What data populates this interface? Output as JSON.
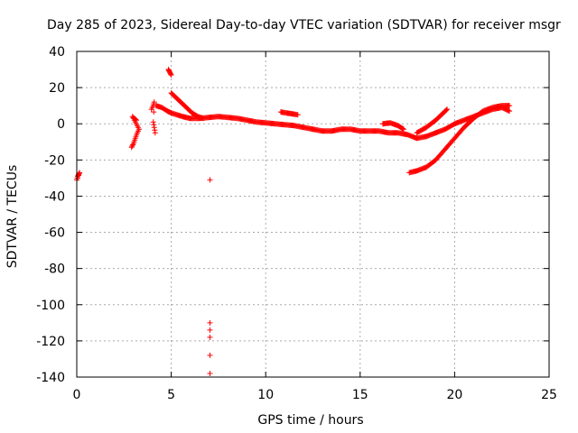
{
  "chart_data": {
    "type": "scatter",
    "title": "Day 285 of 2023, Sidereal Day-to-day VTEC variation (SDTVAR) for receiver msgr",
    "xlabel": "GPS time / hours",
    "ylabel": "SDTVAR / TECUs",
    "xlim": [
      0,
      25
    ],
    "ylim": [
      -140,
      40
    ],
    "xticks": [
      0,
      5,
      10,
      15,
      20,
      25
    ],
    "xtick_labels": [
      "0",
      "5",
      "10",
      "15",
      "20",
      "25"
    ],
    "yticks": [
      40,
      20,
      0,
      -20,
      -40,
      -60,
      -80,
      -100,
      -120,
      -140
    ],
    "ytick_labels": [
      "40",
      "20",
      "0",
      "-20",
      "-40",
      "-60",
      "-80",
      "-100",
      "-120",
      "-140"
    ],
    "grid": true,
    "marker": "+",
    "color": "#ff0000",
    "series": [
      {
        "name": "SDTVAR",
        "segments": [
          [
            [
              0.0,
              -31
            ],
            [
              0.05,
              -29
            ],
            [
              0.1,
              -28
            ],
            [
              0.15,
              -27
            ],
            [
              0.05,
              -30
            ]
          ],
          [
            [
              2.9,
              -13
            ],
            [
              3.0,
              -11
            ],
            [
              3.1,
              -8
            ],
            [
              3.2,
              -5
            ],
            [
              3.3,
              -3
            ],
            [
              2.95,
              4
            ],
            [
              3.05,
              3
            ],
            [
              3.15,
              2
            ]
          ],
          [
            [
              3.95,
              8
            ],
            [
              4.05,
              10
            ],
            [
              4.1,
              12
            ],
            [
              4.05,
              1
            ],
            [
              4.1,
              -2
            ],
            [
              4.15,
              -5
            ]
          ],
          [
            [
              4.85,
              30
            ],
            [
              4.9,
              29
            ],
            [
              4.95,
              28
            ],
            [
              5.0,
              27
            ]
          ],
          [
            [
              4.2,
              10
            ],
            [
              4.5,
              9
            ],
            [
              4.8,
              7
            ],
            [
              5.0,
              6
            ],
            [
              5.3,
              5
            ],
            [
              5.6,
              4
            ],
            [
              6.0,
              3
            ],
            [
              6.5,
              3
            ],
            [
              7.0,
              3.5
            ],
            [
              7.5,
              4
            ],
            [
              8.0,
              3.5
            ],
            [
              8.5,
              3
            ],
            [
              9.0,
              2
            ],
            [
              9.5,
              1
            ],
            [
              10.0,
              0.5
            ],
            [
              10.5,
              0
            ],
            [
              11.0,
              -0.5
            ],
            [
              11.5,
              -1
            ],
            [
              12.0,
              -2
            ],
            [
              12.5,
              -3
            ],
            [
              13.0,
              -4
            ],
            [
              13.5,
              -4
            ],
            [
              14.0,
              -3
            ],
            [
              14.5,
              -3
            ],
            [
              15.0,
              -4
            ],
            [
              15.5,
              -4
            ],
            [
              16.0,
              -4
            ],
            [
              16.5,
              -5
            ],
            [
              17.0,
              -5
            ],
            [
              17.5,
              -6
            ],
            [
              18.0,
              -8
            ],
            [
              18.5,
              -7
            ],
            [
              19.0,
              -5
            ],
            [
              19.5,
              -3
            ],
            [
              20.0,
              0
            ],
            [
              20.5,
              2
            ],
            [
              21.0,
              4
            ],
            [
              21.5,
              6
            ],
            [
              22.0,
              8
            ],
            [
              22.5,
              9
            ],
            [
              22.9,
              7
            ]
          ],
          [
            [
              5.0,
              17
            ],
            [
              5.2,
              15
            ],
            [
              5.5,
              12
            ],
            [
              5.8,
              9
            ],
            [
              6.1,
              6
            ],
            [
              6.4,
              4
            ],
            [
              6.7,
              3
            ]
          ],
          [
            [
              7.05,
              -31
            ],
            [
              7.05,
              -110
            ],
            [
              7.05,
              -118
            ],
            [
              7.05,
              -138
            ]
          ],
          [
            [
              10.8,
              6.5
            ],
            [
              11.1,
              6
            ],
            [
              11.4,
              5.5
            ],
            [
              11.7,
              5
            ]
          ],
          [
            [
              16.2,
              0
            ],
            [
              16.6,
              0.5
            ],
            [
              17.0,
              -1
            ],
            [
              17.3,
              -3
            ]
          ],
          [
            [
              17.6,
              -27
            ],
            [
              18.0,
              -26
            ],
            [
              18.5,
              -24
            ],
            [
              19.0,
              -20
            ],
            [
              19.5,
              -14
            ],
            [
              20.0,
              -8
            ],
            [
              20.5,
              -2
            ],
            [
              21.0,
              3
            ],
            [
              21.5,
              7
            ],
            [
              22.0,
              9
            ],
            [
              22.5,
              10
            ],
            [
              22.9,
              10
            ]
          ],
          [
            [
              18.0,
              -5
            ],
            [
              18.5,
              -2
            ],
            [
              19.0,
              2
            ],
            [
              19.4,
              6
            ],
            [
              19.6,
              8
            ]
          ]
        ]
      }
    ]
  }
}
